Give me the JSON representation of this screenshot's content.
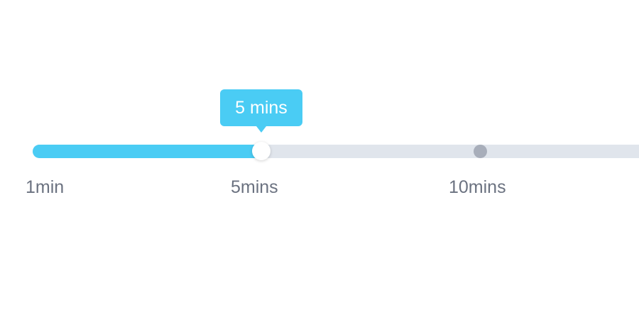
{
  "slider": {
    "tooltip_label": "5 mins",
    "current_value": 5,
    "ticks": [
      {
        "label": "1min",
        "value": 1
      },
      {
        "label": "5mins",
        "value": 5
      },
      {
        "label": "10mins",
        "value": 10
      }
    ],
    "colors": {
      "fill": "#4accf4",
      "track": "#e0e5ec",
      "tick_dot": "#a8aeba",
      "label": "#6b7280",
      "tooltip_text": "#ffffff"
    }
  }
}
